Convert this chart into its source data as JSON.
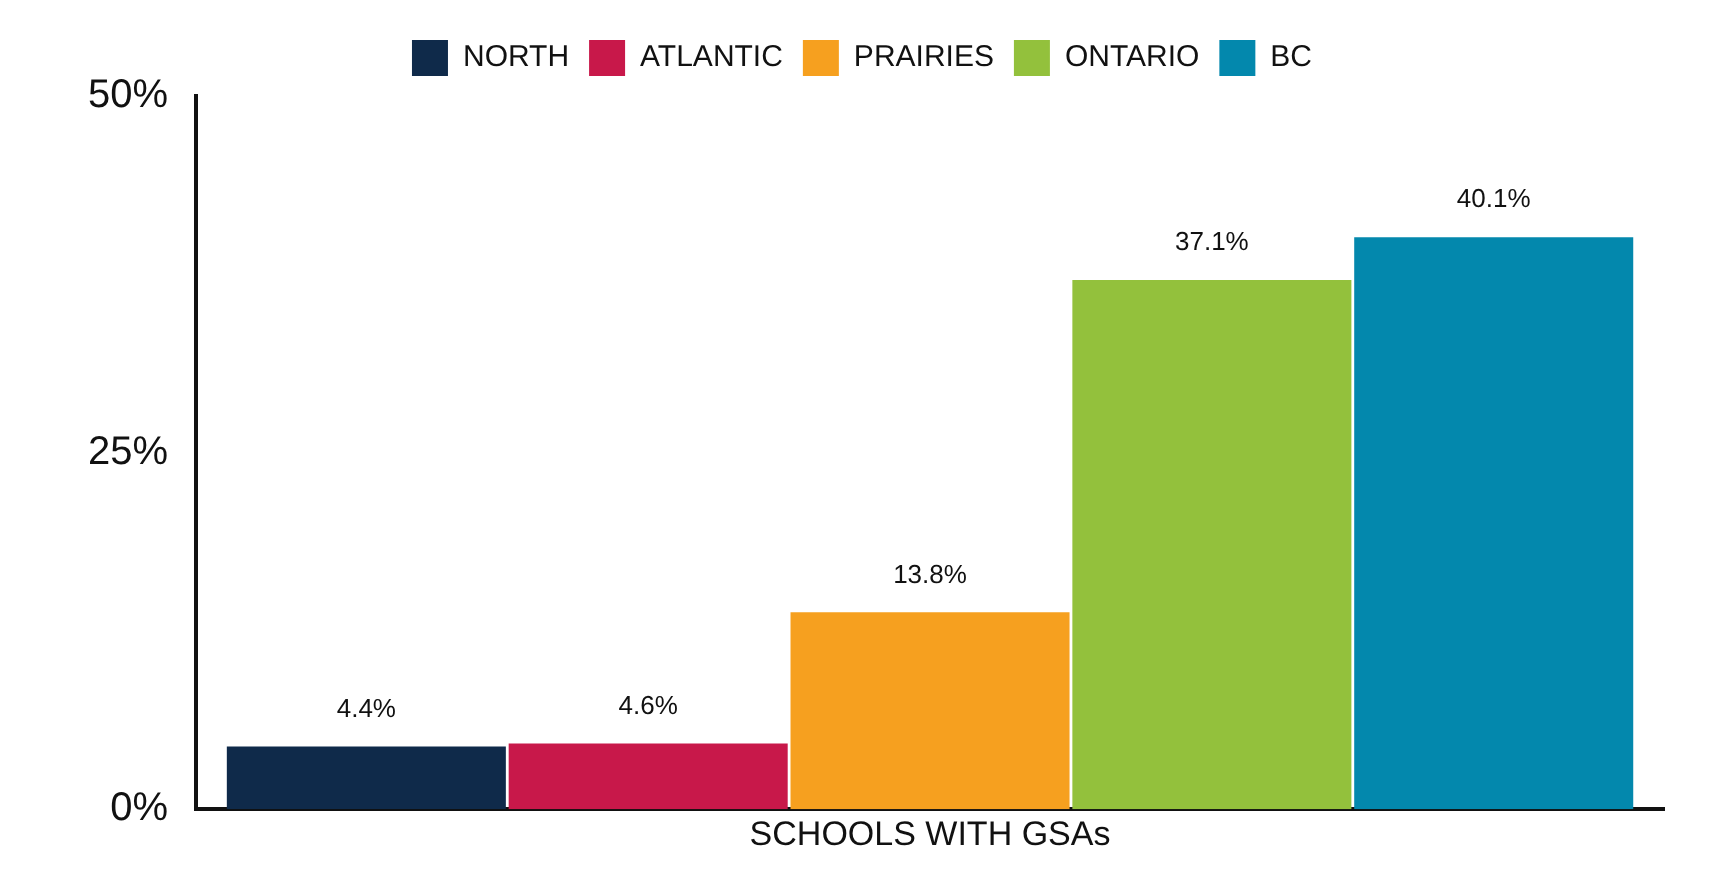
{
  "chart_data": {
    "type": "bar",
    "categories": [
      "SCHOOLS WITH GSAs"
    ],
    "series": [
      {
        "name": "NORTH",
        "color": "#0f2a4a",
        "values": [
          4.4
        ],
        "value_labels": [
          "4.4%"
        ]
      },
      {
        "name": "ATLANTIC",
        "color": "#c8184a",
        "values": [
          4.6
        ],
        "value_labels": [
          "4.6%"
        ]
      },
      {
        "name": "PRAIRIES",
        "color": "#f6a01f",
        "values": [
          13.8
        ],
        "value_labels": [
          "13.8%"
        ]
      },
      {
        "name": "ONTARIO",
        "color": "#93c13c",
        "values": [
          37.1
        ],
        "value_labels": [
          "37.1%"
        ]
      },
      {
        "name": "BC",
        "color": "#0388ad",
        "values": [
          40.1
        ],
        "value_labels": [
          "40.1%"
        ]
      }
    ],
    "ylim": [
      0,
      50
    ],
    "yticks": [
      {
        "value": 0,
        "label": "0%"
      },
      {
        "value": 25,
        "label": "25%"
      },
      {
        "value": 50,
        "label": "50%"
      }
    ],
    "grid": false,
    "legend": "top"
  }
}
